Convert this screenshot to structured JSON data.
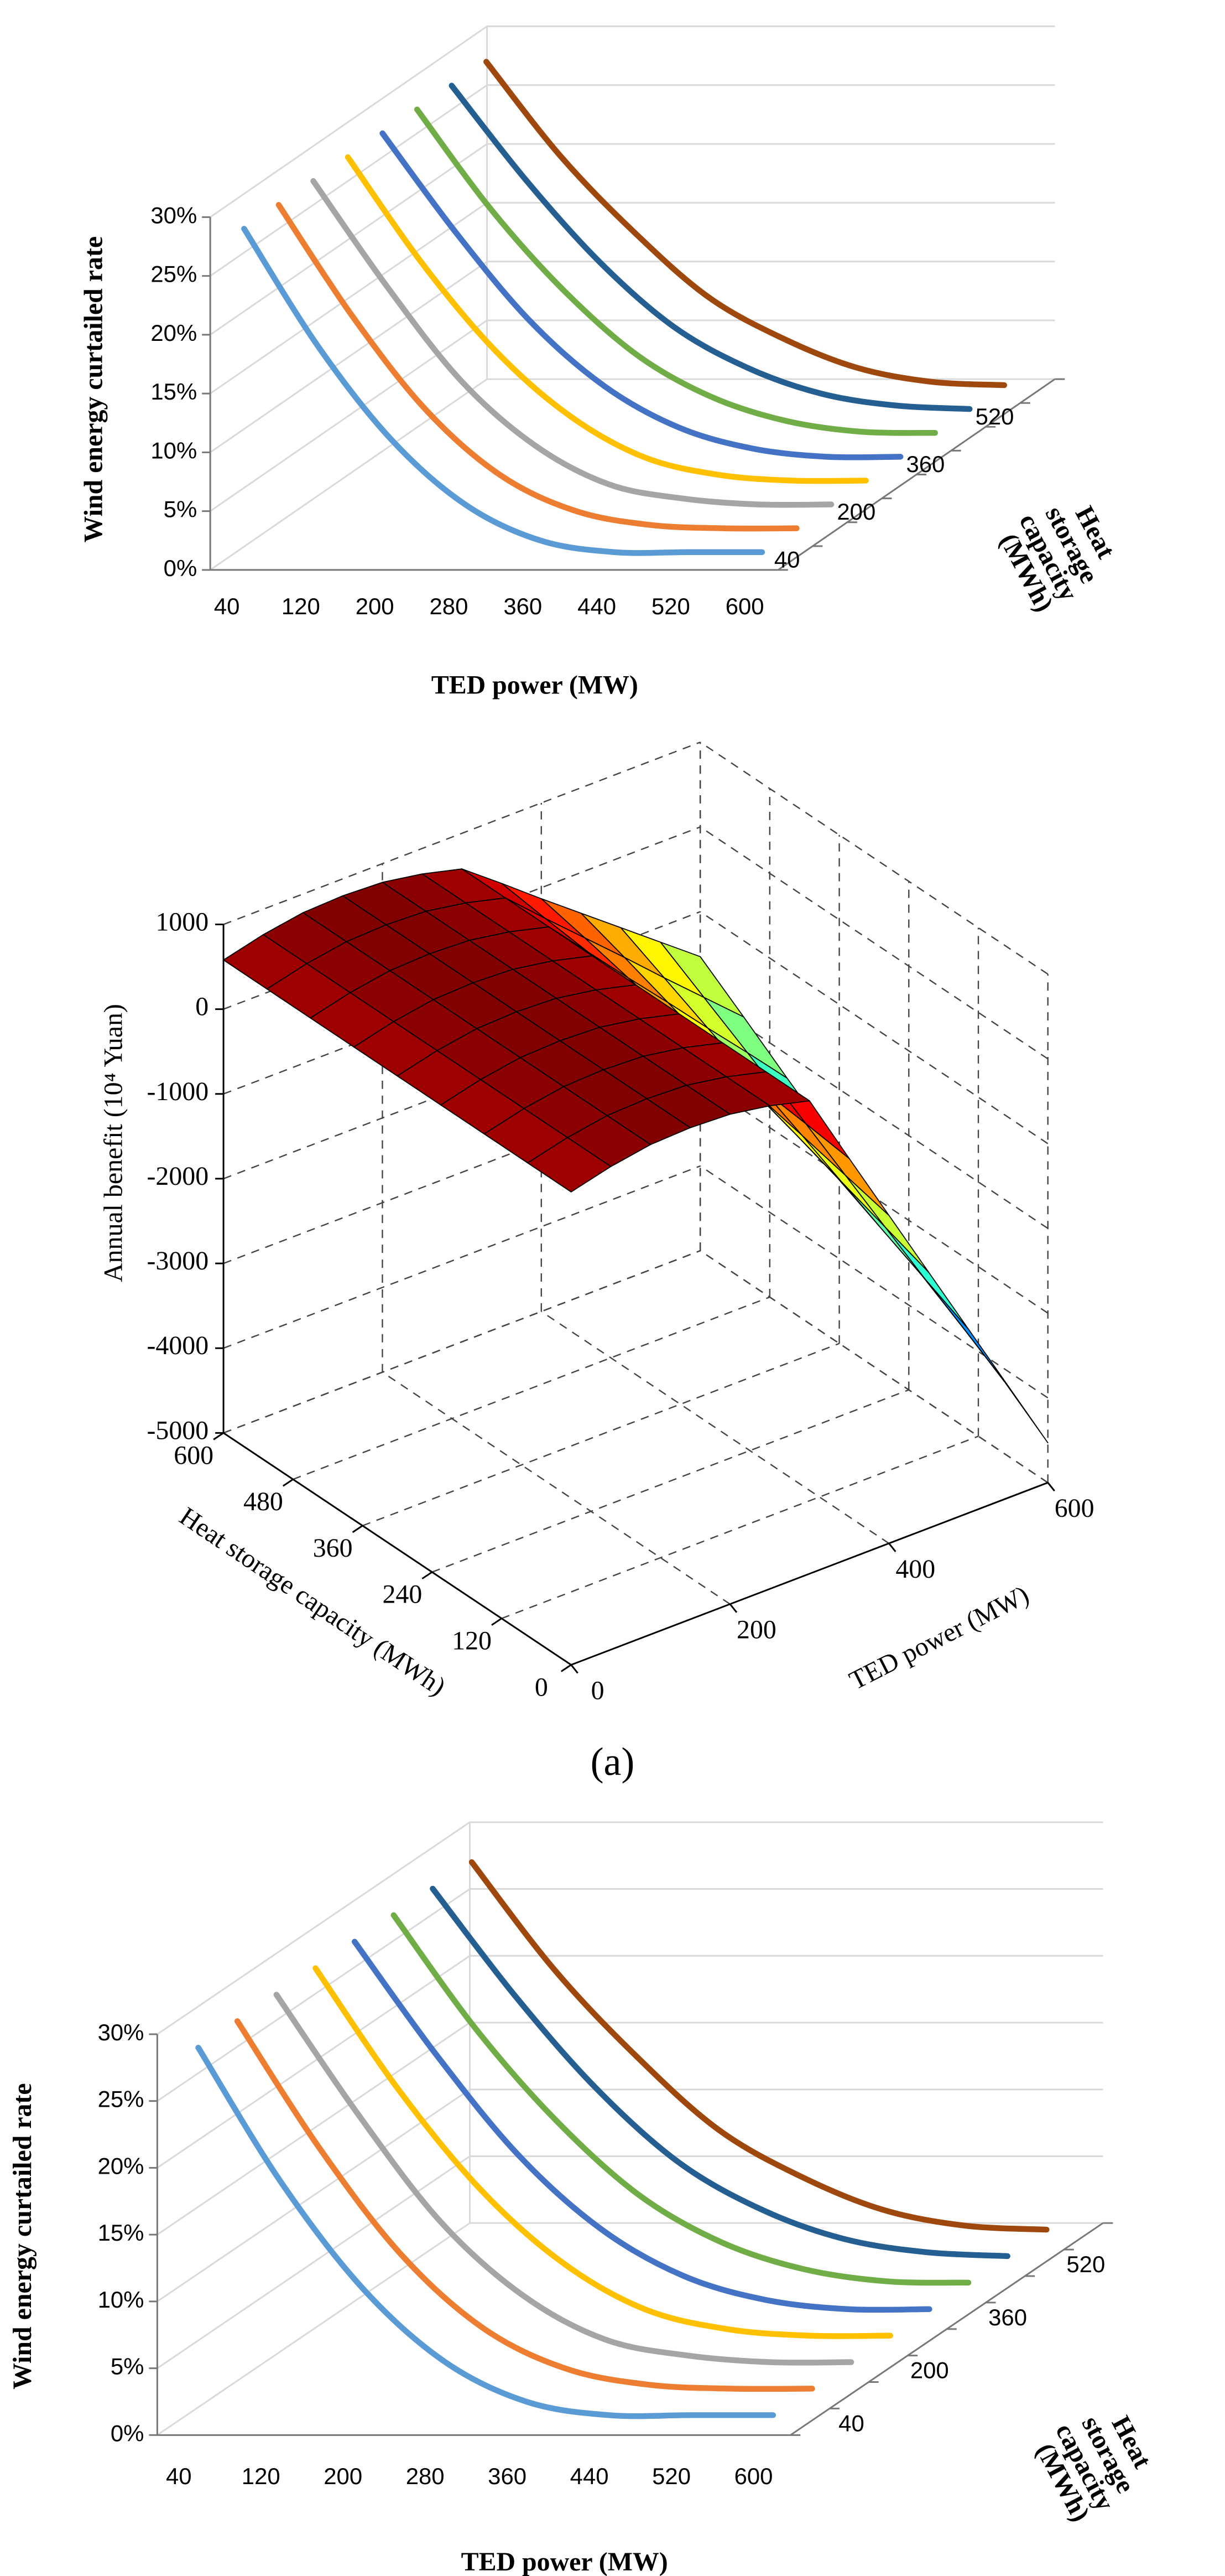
{
  "chart_data": [
    {
      "type": "line3d",
      "xlabel": "TED power (MW)",
      "ylabel": "Wind energy curtailed rate",
      "zlabel": "Heat storage capacity (MWh)",
      "categories": [
        40,
        120,
        200,
        280,
        360,
        440,
        520,
        600
      ],
      "zcategories": [
        40,
        null,
        200,
        null,
        360,
        null,
        520,
        null
      ],
      "series": [
        {
          "color": "#5b9bd5",
          "values": [
            28,
            18,
            10,
            4.5,
            1.5,
            0.5,
            0.5,
            0.5
          ]
        },
        {
          "color": "#ed7d31",
          "values": [
            28,
            18.5,
            10.5,
            5,
            2,
            0.8,
            0.5,
            0.5
          ]
        },
        {
          "color": "#a5a5a5",
          "values": [
            28,
            19,
            11,
            5.5,
            2.2,
            1,
            0.5,
            0.5
          ]
        },
        {
          "color": "#ffc000",
          "values": [
            28,
            19,
            11.5,
            6,
            2.5,
            1,
            0.5,
            0.5
          ]
        },
        {
          "color": "#4472c4",
          "values": [
            28,
            19.5,
            12,
            6.5,
            3,
            1.2,
            0.5,
            0.5
          ]
        },
        {
          "color": "#70ad47",
          "values": [
            28,
            19.5,
            12.5,
            7,
            3.5,
            1.5,
            0.6,
            0.5
          ]
        },
        {
          "color": "#255e91",
          "values": [
            28,
            20,
            13,
            7.5,
            4,
            1.8,
            0.8,
            0.5
          ]
        },
        {
          "color": "#9e480e",
          "values": [
            28,
            20,
            13.5,
            8,
            4.5,
            2,
            0.8,
            0.5
          ]
        }
      ],
      "ylim": [
        0,
        30
      ],
      "yticks": [
        {
          "value": 0,
          "label": "0%"
        },
        {
          "value": 5,
          "label": "5%"
        },
        {
          "value": 10,
          "label": "10%"
        },
        {
          "value": 15,
          "label": "15%"
        },
        {
          "value": 20,
          "label": "20%"
        },
        {
          "value": 25,
          "label": "25%"
        },
        {
          "value": 30,
          "label": "30%"
        }
      ],
      "grid": true
    },
    {
      "type": "surface",
      "xlabel": "TED power (MW)",
      "ylabel": "Heat storage capacity (MWh)",
      "zlabel": "Annual benefit (10⁴ Yuan)",
      "x": [
        0,
        50,
        100,
        150,
        200,
        250,
        300,
        350,
        400,
        450,
        500,
        550,
        600
      ],
      "y": [
        0,
        75,
        150,
        225,
        300,
        375,
        450,
        525,
        600
      ],
      "values": [
        [
          580,
          700,
          780,
          800,
          780,
          700,
          580,
          -280,
          -1130,
          -1980,
          -2830,
          -3680,
          -4530
        ],
        [
          580,
          700,
          780,
          800,
          780,
          700,
          580,
          -210,
          -1000,
          -1790,
          -2580,
          -3360,
          -4150
        ],
        [
          580,
          700,
          780,
          800,
          780,
          700,
          580,
          -150,
          -870,
          -1600,
          -2330,
          -3050,
          -3780
        ],
        [
          580,
          700,
          780,
          800,
          780,
          700,
          580,
          -90,
          -750,
          -1410,
          -2080,
          -2740,
          -3400
        ],
        [
          580,
          700,
          780,
          800,
          780,
          700,
          580,
          -20,
          -630,
          -1230,
          -1830,
          -2430,
          -3030
        ],
        [
          580,
          700,
          780,
          800,
          780,
          700,
          580,
          40,
          -500,
          -1040,
          -1580,
          -2110,
          -2650
        ],
        [
          580,
          700,
          780,
          800,
          780,
          700,
          580,
          100,
          -380,
          -850,
          -1330,
          -1800,
          -2280
        ],
        [
          580,
          700,
          780,
          800,
          780,
          700,
          580,
          160,
          -250,
          -660,
          -1080,
          -1490,
          -1900
        ],
        [
          580,
          700,
          780,
          800,
          780,
          700,
          580,
          230,
          -130,
          -480,
          -830,
          -1180,
          -1530
        ]
      ],
      "xlim": [
        0,
        600
      ],
      "xticks": [
        0,
        200,
        400,
        600
      ],
      "ylim": [
        0,
        600
      ],
      "yticks": [
        0,
        120,
        240,
        360,
        480,
        600
      ],
      "zlim": [
        -5000,
        1000
      ],
      "zticks": [
        1000,
        0,
        -1000,
        -2000,
        -3000,
        -4000,
        -5000
      ],
      "colormap": "jet",
      "grid": true
    },
    {
      "type": "line3d",
      "xlabel": "TED power (MW)",
      "ylabel": "Wind energy curtailed rate",
      "zlabel": "Heat storage capacity (MWh)",
      "categories": [
        40,
        120,
        200,
        280,
        360,
        440,
        520,
        600
      ],
      "zcategories": [
        40,
        null,
        200,
        null,
        360,
        null,
        520,
        null
      ],
      "series": [
        {
          "color": "#5b9bd5",
          "values": [
            28,
            18,
            10,
            4.5,
            1.5,
            0.5,
            0.5,
            0.5
          ]
        },
        {
          "color": "#ed7d31",
          "values": [
            28,
            18.5,
            10.5,
            5,
            2,
            0.8,
            0.5,
            0.5
          ]
        },
        {
          "color": "#a5a5a5",
          "values": [
            28,
            19,
            11,
            5.5,
            2.2,
            1,
            0.5,
            0.5
          ]
        },
        {
          "color": "#ffc000",
          "values": [
            28,
            19,
            11.5,
            6,
            2.5,
            1,
            0.5,
            0.5
          ]
        },
        {
          "color": "#4472c4",
          "values": [
            28,
            19.5,
            12,
            6.5,
            3,
            1.2,
            0.5,
            0.5
          ]
        },
        {
          "color": "#70ad47",
          "values": [
            28,
            19.5,
            12.5,
            7,
            3.5,
            1.5,
            0.6,
            0.5
          ]
        },
        {
          "color": "#255e91",
          "values": [
            28,
            20,
            13,
            7.5,
            4,
            1.8,
            0.8,
            0.5
          ]
        },
        {
          "color": "#9e480e",
          "values": [
            28,
            20,
            13.5,
            8,
            4.5,
            2,
            0.8,
            0.5
          ]
        }
      ],
      "ylim": [
        0,
        30
      ],
      "yticks": [
        {
          "value": 0,
          "label": "0%"
        },
        {
          "value": 5,
          "label": "5%"
        },
        {
          "value": 10,
          "label": "10%"
        },
        {
          "value": 15,
          "label": "15%"
        },
        {
          "value": 20,
          "label": "20%"
        },
        {
          "value": 25,
          "label": "25%"
        },
        {
          "value": 30,
          "label": "30%"
        }
      ],
      "grid": true
    }
  ],
  "caption": "(a)"
}
